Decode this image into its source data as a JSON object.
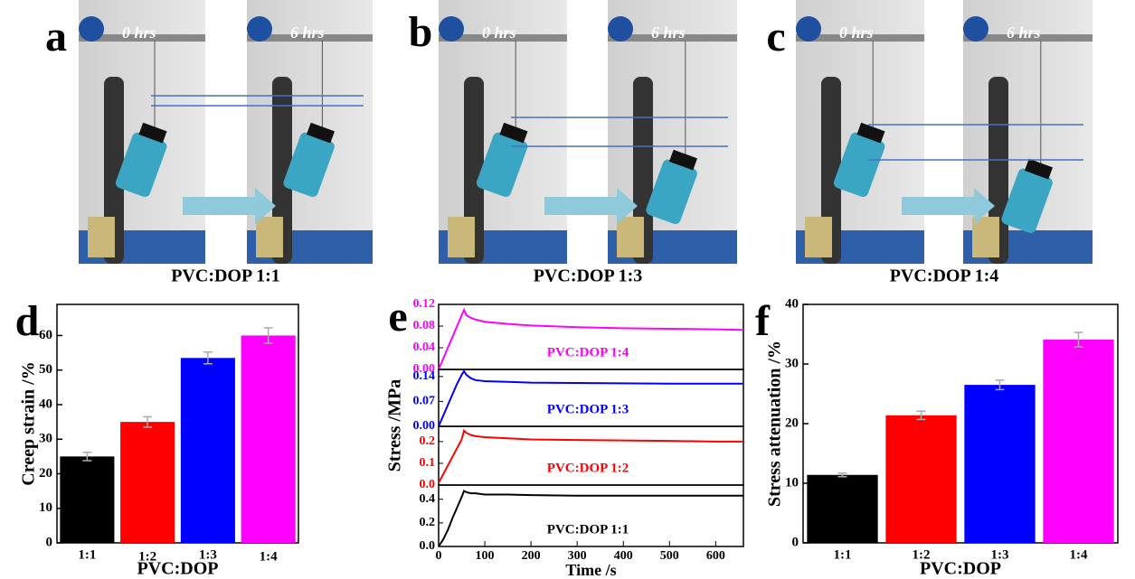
{
  "photos": [
    {
      "label": "a",
      "times": [
        "0 hrs",
        "6 hrs"
      ],
      "caption": "PVC:DOP 1:1"
    },
    {
      "label": "b",
      "times": [
        "0 hrs",
        "6 hrs"
      ],
      "caption": "PVC:DOP 1:3"
    },
    {
      "label": "c",
      "times": [
        "0 hrs",
        "6 hrs"
      ],
      "caption": "PVC:DOP 1:4"
    }
  ],
  "chart_data": [
    {
      "type": "bar",
      "label": "d",
      "categories": [
        "1:1",
        "1:2",
        "1:3",
        "1:4"
      ],
      "values": [
        25,
        35,
        53.5,
        60
      ],
      "errors": [
        1.2,
        1.5,
        1.7,
        2.2
      ],
      "colors": [
        "#000000",
        "#ff0000",
        "#0000ff",
        "#ff00ff"
      ],
      "ylim": [
        0,
        69
      ],
      "yticks": [
        0,
        10,
        20,
        30,
        40,
        50,
        60
      ],
      "ylabel": "Creep strain /%",
      "xlabel": "PVC:DOP"
    },
    {
      "type": "line",
      "label": "e",
      "x": [
        0,
        10,
        20,
        30,
        40,
        50,
        55,
        60,
        70,
        80,
        100,
        150,
        200,
        300,
        400,
        500,
        600,
        660
      ],
      "xlim": [
        0,
        660
      ],
      "xticks": [
        0,
        100,
        200,
        300,
        400,
        500,
        600
      ],
      "xlabel": "Time /s",
      "ylabel": "Stress /MPa",
      "panels": [
        {
          "name": "PVC:DOP 1:4",
          "color": "#ff00ff",
          "ylim": [
            0,
            0.12
          ],
          "yticks": [
            {
              "value": 0,
              "label": "0.00"
            },
            0.04,
            0.08,
            0.12
          ],
          "values": [
            0,
            0.02,
            0.04,
            0.06,
            0.08,
            0.1,
            0.11,
            0.1,
            0.095,
            0.092,
            0.088,
            0.084,
            0.081,
            0.078,
            0.076,
            0.075,
            0.074,
            0.073
          ]
        },
        {
          "name": "PVC:DOP 1:3",
          "color": "#0000ff",
          "ylim": [
            0,
            0.16
          ],
          "yticks": [
            {
              "value": 0,
              "label": "0.00"
            },
            0.07,
            0.14
          ],
          "values": [
            0,
            0.03,
            0.06,
            0.09,
            0.12,
            0.145,
            0.155,
            0.145,
            0.135,
            0.13,
            0.127,
            0.125,
            0.123,
            0.122,
            0.121,
            0.12,
            0.12,
            0.12
          ]
        },
        {
          "name": "PVC:DOP 1:2",
          "color": "#ff0000",
          "ylim": [
            0,
            0.27
          ],
          "yticks": [
            {
              "value": 0,
              "label": "0.0"
            },
            0.1,
            0.2
          ],
          "values": [
            0.01,
            0.05,
            0.09,
            0.13,
            0.17,
            0.21,
            0.25,
            0.24,
            0.23,
            0.225,
            0.22,
            0.215,
            0.21,
            0.207,
            0.205,
            0.203,
            0.2,
            0.2
          ]
        },
        {
          "name": "PVC:DOP 1:1",
          "color": "#000000",
          "ylim": [
            0,
            0.52
          ],
          "yticks": [
            {
              "value": 0,
              "label": "0.0"
            },
            0.2,
            0.4
          ],
          "values": [
            0,
            0.06,
            0.14,
            0.24,
            0.33,
            0.42,
            0.47,
            0.46,
            0.45,
            0.45,
            0.44,
            0.44,
            0.435,
            0.43,
            0.43,
            0.43,
            0.43,
            0.43
          ]
        }
      ]
    },
    {
      "type": "bar",
      "label": "f",
      "categories": [
        "1:1",
        "1:2",
        "1:3",
        "1:4"
      ],
      "values": [
        11.4,
        21.4,
        26.5,
        34.1
      ],
      "errors": [
        0.3,
        0.7,
        0.8,
        1.2
      ],
      "colors": [
        "#000000",
        "#ff0000",
        "#0000ff",
        "#ff00ff"
      ],
      "ylim": [
        0,
        40
      ],
      "yticks": [
        0,
        10,
        20,
        30,
        40
      ],
      "ylabel": "Stress attenuation /%",
      "xlabel": "PVC:DOP"
    }
  ]
}
